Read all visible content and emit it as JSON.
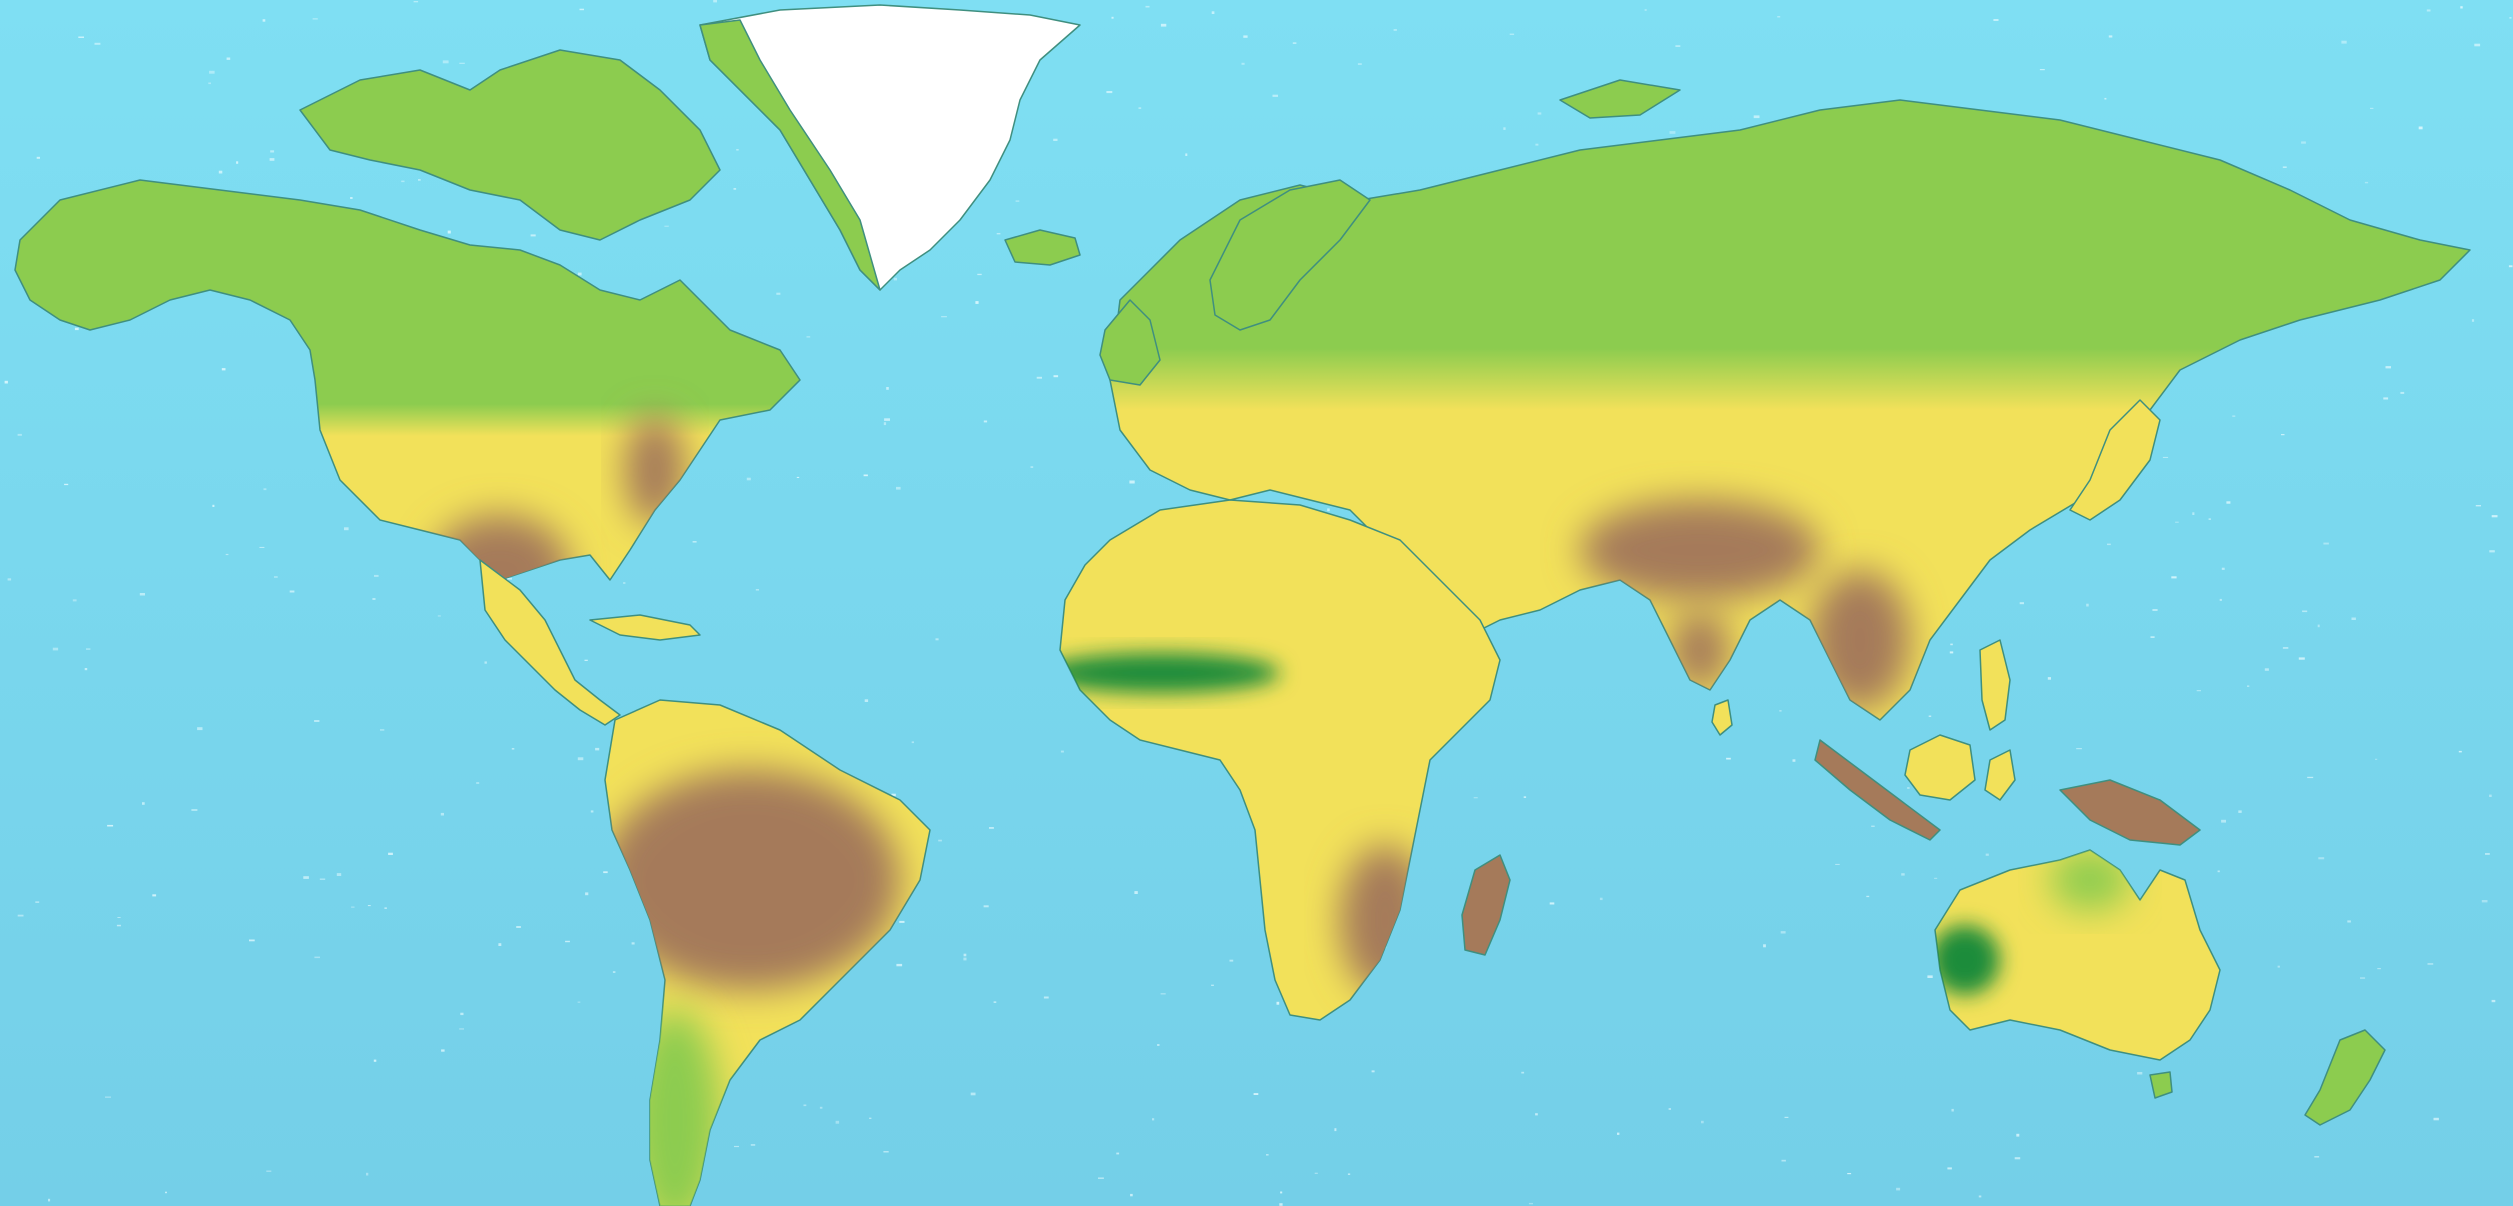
{
  "colors": {
    "ocean_top": "#7fdff3",
    "ocean_bottom": "#74cfe8",
    "boreal_green": "#8ccc4f",
    "temperate_yellow": "#f2e15a",
    "tropical_brown": "#a57a5a",
    "dark_green": "#1a8c3a",
    "ice_white": "#ffffff",
    "border": "#3f8f7f",
    "ocean_speckle": "#e8fbff"
  },
  "map": {
    "projection": "world",
    "features": [
      "greenland-ice",
      "north-america",
      "south-america",
      "europe-asia",
      "africa",
      "madagascar",
      "australia",
      "new-zealand",
      "japan",
      "indonesia",
      "new-guinea"
    ]
  }
}
